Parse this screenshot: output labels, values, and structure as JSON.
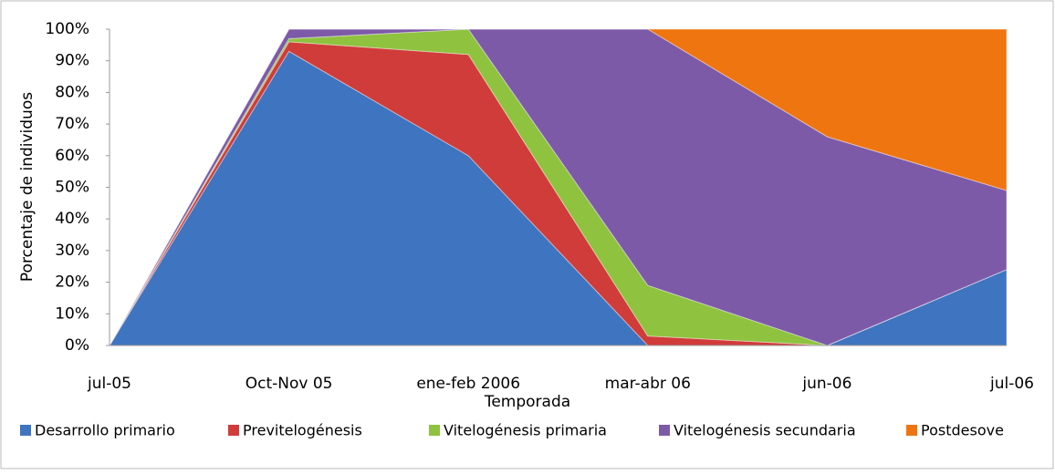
{
  "chart_data": {
    "type": "stacked_area",
    "x_label": "Temporada",
    "y_label": "Porcentaje de individuos",
    "categories": [
      "jul-05",
      "Oct-Nov 05",
      "ene-feb 2006",
      "mar-abr 06",
      "jun-06",
      "jul-06"
    ],
    "series": [
      {
        "name": "Desarrollo primario",
        "color": "#3f74c0",
        "values": [
          0,
          93,
          60,
          0,
          0,
          24
        ]
      },
      {
        "name": "Previtelogénesis",
        "color": "#d03c3a",
        "values": [
          0,
          3,
          32,
          3,
          0,
          0
        ]
      },
      {
        "name": "Vitelogénesis primaria",
        "color": "#8fc23f",
        "values": [
          0,
          1,
          8,
          16,
          0,
          0
        ]
      },
      {
        "name": "Vitelogénesis secundaria",
        "color": "#7d5aa8",
        "values": [
          0,
          3,
          0,
          81,
          66,
          25
        ]
      },
      {
        "name": "Postdesove",
        "color": "#ef7510",
        "values": [
          0,
          0,
          0,
          0,
          34,
          51
        ]
      }
    ],
    "ylim": [
      0,
      100
    ],
    "yticks": [
      {
        "value": 0,
        "label": "0%"
      },
      {
        "value": 10,
        "label": "10%"
      },
      {
        "value": 20,
        "label": "20%"
      },
      {
        "value": 30,
        "label": "30%"
      },
      {
        "value": 40,
        "label": "40%"
      },
      {
        "value": 50,
        "label": "50%"
      },
      {
        "value": 60,
        "label": "60%"
      },
      {
        "value": 70,
        "label": "70%"
      },
      {
        "value": 80,
        "label": "80%"
      },
      {
        "value": 90,
        "label": "90%"
      },
      {
        "value": 100,
        "label": "100%"
      }
    ],
    "legend": "bottom"
  }
}
